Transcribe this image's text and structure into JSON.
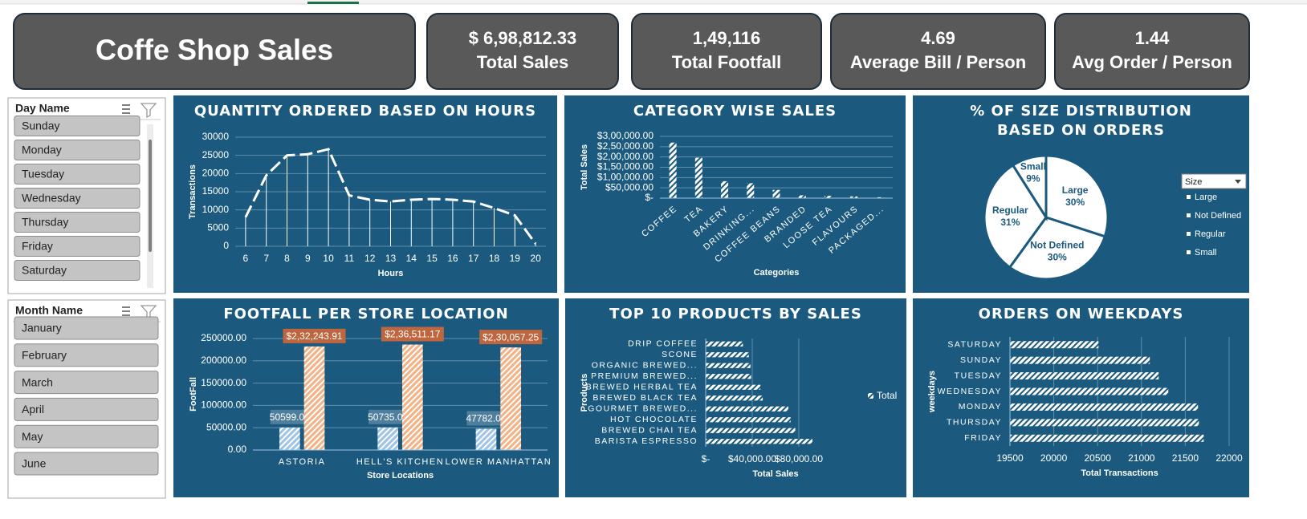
{
  "header": {
    "title": "Coffe Shop Sales"
  },
  "kpis": [
    {
      "value": "$ 6,98,812.33",
      "label": "Total Sales"
    },
    {
      "value": "1,49,116",
      "label": "Total Footfall"
    },
    {
      "value": "4.69",
      "label": "Average Bill / Person"
    },
    {
      "value": "1.44",
      "label": "Avg Order / Person"
    }
  ],
  "slicers": [
    {
      "title": "Day Name",
      "items": [
        "Sunday",
        "Monday",
        "Tuesday",
        "Wednesday",
        "Thursday",
        "Friday",
        "Saturday"
      ]
    },
    {
      "title": "Month Name",
      "items": [
        "January",
        "February",
        "March",
        "April",
        "May",
        "June"
      ]
    }
  ],
  "chart_data": [
    {
      "type": "line",
      "title": "QUANTITY ORDERED BASED ON HOURS",
      "x_label": "Hours",
      "y_label": "Transactions",
      "categories": [
        "6",
        "7",
        "8",
        "9",
        "10",
        "11",
        "12",
        "13",
        "14",
        "15",
        "16",
        "17",
        "18",
        "19",
        "20"
      ],
      "values": [
        8000,
        19500,
        25000,
        25300,
        26700,
        14000,
        12800,
        12300,
        12800,
        13000,
        12800,
        12300,
        10500,
        8500,
        700
      ],
      "color": "#ffffff",
      "ylim": [
        0,
        30000
      ],
      "yticks": [
        0,
        5000,
        10000,
        15000,
        20000,
        25000,
        30000
      ],
      "grid": true
    },
    {
      "type": "bar",
      "title": "CATEGORY WISE SALES",
      "x_label": "Categories",
      "y_label": "Total Sales",
      "categories": [
        "COFFEE",
        "TEA",
        "BAKERY",
        "DRINKING...",
        "COFFEE BEANS",
        "BRANDED",
        "LOOSE TEA",
        "FLAVOURS",
        "PACKAGED..."
      ],
      "values": [
        269952,
        196405,
        82316,
        72416,
        40085,
        13607,
        11213,
        8409,
        4407
      ],
      "color": "#ffffff",
      "ylim": [
        0,
        300000
      ],
      "yticks": [
        {
          "value": 0,
          "label": "$-"
        },
        {
          "value": 50000,
          "label": "$50,000.00"
        },
        {
          "value": 100000,
          "label": "$1,00,000.00"
        },
        {
          "value": 150000,
          "label": "$1,50,000.00"
        },
        {
          "value": 200000,
          "label": "$2,00,000.00"
        },
        {
          "value": 250000,
          "label": "$2,50,000.00"
        },
        {
          "value": 300000,
          "label": "$3,00,000.00"
        }
      ],
      "grid": true
    },
    {
      "type": "pie",
      "title": "% OF SIZE DISTRIBUTION BASED ON ORDERS",
      "categories": [
        "Large",
        "Not Defined",
        "Regular",
        "Small"
      ],
      "values": [
        30,
        30,
        31,
        9
      ],
      "value_labels": [
        "30%",
        "30%",
        "31%",
        "9%"
      ],
      "color": "#ffffff",
      "legend_title": "Size",
      "legend": "right"
    },
    {
      "type": "bar",
      "title": "FOOTFALL PER STORE LOCATION",
      "x_label": "Store Locations",
      "y_label": "FootFall",
      "categories": [
        "ASTORIA",
        "HELL'S KITCHEN",
        "LOWER MANHATTAN"
      ],
      "series": [
        {
          "color": "#9dc3e6",
          "values": [
            50599,
            50735,
            47782
          ],
          "value_labels": [
            "50599.00",
            "50735.00",
            "47782.00"
          ]
        },
        {
          "color": "#f4b183",
          "values": [
            232243.91,
            236511.17,
            230057.25
          ],
          "value_labels": [
            "$2,32,243.91",
            "$2,36,511.17",
            "$2,30,057.25"
          ]
        }
      ],
      "ylim": [
        0,
        250000
      ],
      "yticks": [
        {
          "value": 0,
          "label": "0.00"
        },
        {
          "value": 50000,
          "label": "50000.00"
        },
        {
          "value": 100000,
          "label": "100000.00"
        },
        {
          "value": 150000,
          "label": "150000.00"
        },
        {
          "value": 200000,
          "label": "200000.00"
        },
        {
          "value": 250000,
          "label": "250000.00"
        }
      ],
      "grid": true
    },
    {
      "type": "barh",
      "title": "TOP 10 PRODUCTS BY SALES",
      "x_label": "Total Sales",
      "y_label": "Products",
      "categories": [
        "DRIP COFFEE",
        "SCONE",
        "ORGANIC BREWED...",
        "PREMIUM BREWED...",
        "BREWED HERBAL TEA",
        "BREWED BLACK TEA",
        "GOURMET BREWED...",
        "HOT CHOCOLATE",
        "BREWED CHAI TEA",
        "BARISTA ESPRESSO"
      ],
      "series": [
        {
          "name": "Total",
          "color": "#ffffff",
          "values": [
            32000,
            37000,
            38500,
            39000,
            47000,
            49000,
            71000,
            73000,
            77000,
            91700
          ]
        }
      ],
      "xlim": [
        0,
        120000
      ],
      "xticks": [
        {
          "value": 0,
          "label": "$-"
        },
        {
          "value": 40000,
          "label": "$40,000.00"
        },
        {
          "value": 80000,
          "label": "$80,000.00"
        }
      ],
      "grid": true,
      "legend": "right"
    },
    {
      "type": "barh",
      "title": "ORDERS ON WEEKDAYS",
      "x_label": "Total Transactions",
      "y_label": "weekdays",
      "categories": [
        "SATURDAY",
        "SUNDAY",
        "TUESDAY",
        "WEDNESDAY",
        "MONDAY",
        "THURSDAY",
        "FRIDAY"
      ],
      "values": [
        20510,
        21095,
        21196,
        21306,
        21645,
        21655,
        21710
      ],
      "color": "#ffffff",
      "xlim": [
        19500,
        22000
      ],
      "xticks": [
        19500,
        20000,
        20500,
        21000,
        21500,
        22000
      ],
      "grid": true
    }
  ]
}
